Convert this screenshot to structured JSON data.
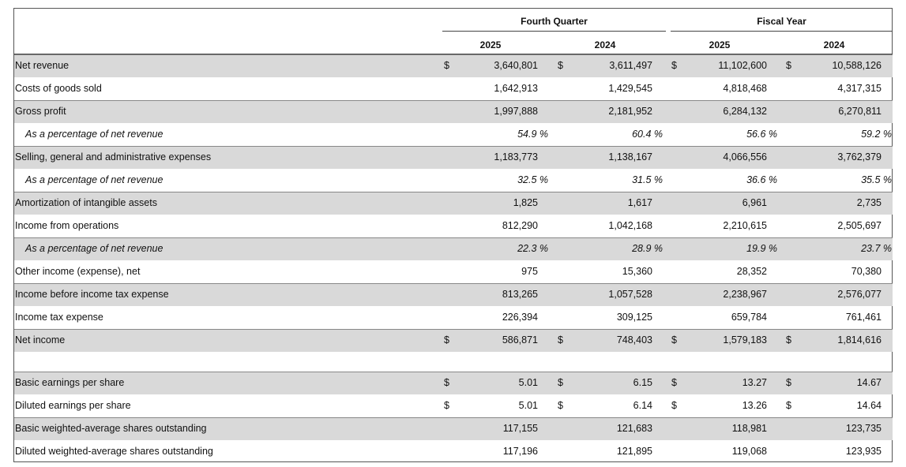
{
  "table": {
    "groups": [
      "Fourth Quarter",
      "Fiscal Year"
    ],
    "years": [
      "2025",
      "2024",
      "2025",
      "2024"
    ],
    "rows": [
      {
        "label": "Net revenue",
        "currency": "$",
        "values": [
          "3,640,801",
          "3,611,497",
          "11,102,600",
          "10,588,126"
        ]
      },
      {
        "label": "Costs of goods sold",
        "values": [
          "1,642,913",
          "1,429,545",
          "4,818,468",
          "4,317,315"
        ]
      },
      {
        "label": "Gross profit",
        "values": [
          "1,997,888",
          "2,181,952",
          "6,284,132",
          "6,270,811"
        ]
      },
      {
        "label": "As a percentage of net revenue",
        "italic": true,
        "values": [
          "54.9 %",
          "60.4 %",
          "56.6 %",
          "59.2 %"
        ]
      },
      {
        "label": "Selling, general and administrative expenses",
        "values": [
          "1,183,773",
          "1,138,167",
          "4,066,556",
          "3,762,379"
        ]
      },
      {
        "label": "As a percentage of net revenue",
        "italic": true,
        "values": [
          "32.5 %",
          "31.5 %",
          "36.6 %",
          "35.5 %"
        ]
      },
      {
        "label": "Amortization of intangible assets",
        "values": [
          "1,825",
          "1,617",
          "6,961",
          "2,735"
        ]
      },
      {
        "label": "Income from operations",
        "values": [
          "812,290",
          "1,042,168",
          "2,210,615",
          "2,505,697"
        ]
      },
      {
        "label": "As a percentage of net revenue",
        "italic": true,
        "values": [
          "22.3 %",
          "28.9 %",
          "19.9 %",
          "23.7 %"
        ]
      },
      {
        "label": "Other income (expense), net",
        "values": [
          "975",
          "15,360",
          "28,352",
          "70,380"
        ]
      },
      {
        "label": "Income before income tax expense",
        "values": [
          "813,265",
          "1,057,528",
          "2,238,967",
          "2,576,077"
        ]
      },
      {
        "label": "Income tax expense",
        "values": [
          "226,394",
          "309,125",
          "659,784",
          "761,461"
        ]
      },
      {
        "label": "Net income",
        "currency": "$",
        "values": [
          "586,871",
          "748,403",
          "1,579,183",
          "1,814,616"
        ]
      }
    ],
    "per_share_rows": [
      {
        "label": "Basic earnings per share",
        "currency": "$",
        "values": [
          "5.01",
          "6.15",
          "13.27",
          "14.67"
        ]
      },
      {
        "label": "Diluted earnings per share",
        "currency": "$",
        "values": [
          "5.01",
          "6.14",
          "13.26",
          "14.64"
        ]
      },
      {
        "label": "Basic weighted-average shares outstanding",
        "values": [
          "117,155",
          "121,683",
          "118,981",
          "123,735"
        ]
      },
      {
        "label": "Diluted weighted-average shares outstanding",
        "values": [
          "117,196",
          "121,895",
          "119,068",
          "123,935"
        ]
      }
    ]
  }
}
